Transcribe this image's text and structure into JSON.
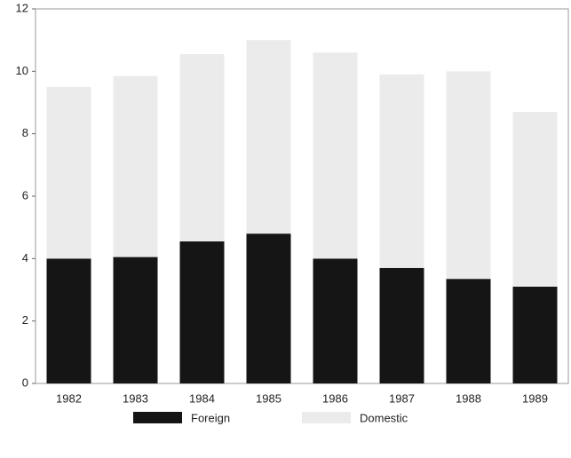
{
  "chart_data": {
    "type": "stacked_bar",
    "categories": [
      "1982",
      "1983",
      "1984",
      "1985",
      "1986",
      "1987",
      "1988",
      "1989"
    ],
    "series": [
      {
        "name": "Foreign",
        "color": "#151515",
        "values": [
          4.0,
          4.05,
          4.55,
          4.8,
          4.0,
          3.7,
          3.35,
          3.1
        ]
      },
      {
        "name": "Domestic",
        "color": "#ebebeb",
        "values": [
          5.5,
          5.8,
          6.0,
          6.2,
          6.6,
          6.2,
          6.65,
          5.6
        ]
      }
    ],
    "ylim": [
      0,
      12
    ],
    "yticks": [
      0,
      2,
      4,
      6,
      8,
      10,
      12
    ],
    "grid": false
  }
}
